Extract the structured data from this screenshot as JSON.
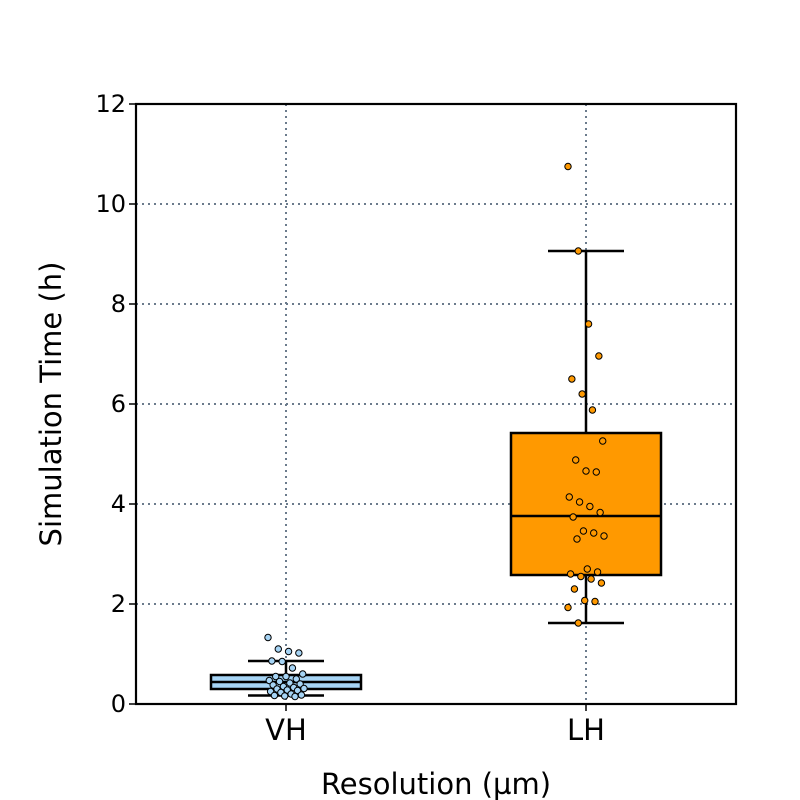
{
  "chart_data": {
    "type": "box",
    "xlabel": "Resolution (µm)",
    "ylabel": "Simulation Time (h)",
    "ylim": [
      0,
      12
    ],
    "yticks": [
      "0",
      "2",
      "4",
      "6",
      "8",
      "10",
      "12"
    ],
    "grid": true,
    "categories": [
      "VH",
      "LH"
    ],
    "boxes": [
      {
        "category": "VH",
        "color": "#a6d4f5",
        "whisker_low": 0.17,
        "q1": 0.3,
        "median": 0.44,
        "q3": 0.58,
        "whisker_high": 0.86,
        "points": [
          1.33,
          1.1,
          1.05,
          1.02,
          0.86,
          0.85,
          0.72,
          0.6,
          0.55,
          0.55,
          0.5,
          0.47,
          0.45,
          0.42,
          0.4,
          0.38,
          0.35,
          0.33,
          0.31,
          0.3,
          0.28,
          0.27,
          0.25,
          0.23,
          0.2,
          0.18,
          0.17,
          0.16,
          0.15
        ]
      },
      {
        "category": "LH",
        "color": "#ff9900",
        "whisker_low": 1.62,
        "q1": 2.58,
        "median": 3.76,
        "q3": 5.42,
        "whisker_high": 9.06,
        "points": [
          10.75,
          9.06,
          7.6,
          6.96,
          6.5,
          6.2,
          5.88,
          5.26,
          4.88,
          4.66,
          4.64,
          4.14,
          4.04,
          3.95,
          3.83,
          3.74,
          3.46,
          3.42,
          3.36,
          3.3,
          2.7,
          2.64,
          2.6,
          2.55,
          2.5,
          2.42,
          2.3,
          2.07,
          2.05,
          1.93,
          1.62
        ]
      }
    ]
  }
}
